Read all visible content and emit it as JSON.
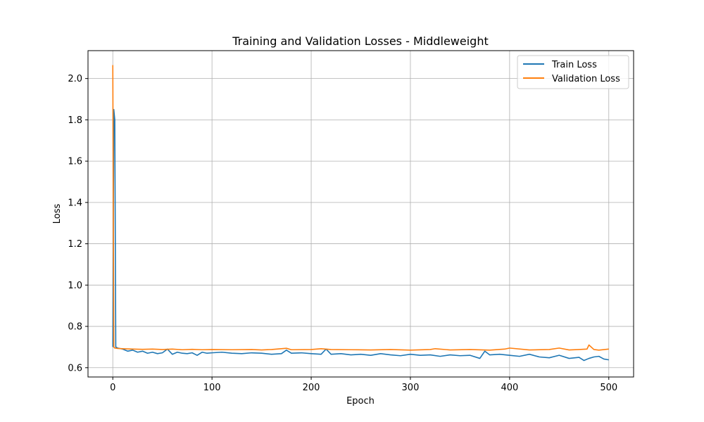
{
  "chart_data": {
    "type": "line",
    "title": "Training and Validation Losses - Middleweight",
    "xlabel": "Epoch",
    "ylabel": "Loss",
    "xlim": [
      -25,
      525
    ],
    "ylim": [
      0.555,
      2.135
    ],
    "xticks": [
      0,
      100,
      200,
      300,
      400,
      500
    ],
    "yticks": [
      0.6,
      0.8,
      1.0,
      1.2,
      1.4,
      1.6,
      1.8,
      2.0
    ],
    "xtick_labels": [
      "0",
      "100",
      "200",
      "300",
      "400",
      "500"
    ],
    "ytick_labels": [
      "0.6",
      "0.8",
      "1.0",
      "1.2",
      "1.4",
      "1.6",
      "1.8",
      "2.0"
    ],
    "grid": true,
    "legend_position": "top-right",
    "series": [
      {
        "name": "Train Loss",
        "color": "#1f77b4",
        "x": [
          0,
          1,
          2,
          3,
          5,
          10,
          15,
          20,
          25,
          30,
          35,
          40,
          45,
          50,
          55,
          60,
          65,
          70,
          75,
          80,
          85,
          90,
          95,
          100,
          110,
          120,
          130,
          140,
          150,
          160,
          170,
          175,
          180,
          190,
          200,
          210,
          215,
          220,
          230,
          240,
          250,
          260,
          270,
          280,
          290,
          300,
          310,
          320,
          330,
          340,
          350,
          360,
          370,
          375,
          380,
          390,
          400,
          410,
          420,
          430,
          440,
          450,
          460,
          470,
          475,
          480,
          485,
          490,
          495,
          500
        ],
        "y": [
          0.7,
          1.85,
          1.8,
          0.7,
          0.695,
          0.69,
          0.68,
          0.685,
          0.675,
          0.68,
          0.67,
          0.675,
          0.668,
          0.672,
          0.69,
          0.665,
          0.675,
          0.67,
          0.668,
          0.672,
          0.66,
          0.675,
          0.67,
          0.672,
          0.675,
          0.67,
          0.668,
          0.672,
          0.67,
          0.665,
          0.668,
          0.685,
          0.67,
          0.672,
          0.668,
          0.665,
          0.69,
          0.665,
          0.668,
          0.662,
          0.665,
          0.66,
          0.668,
          0.662,
          0.658,
          0.665,
          0.66,
          0.662,
          0.655,
          0.662,
          0.658,
          0.66,
          0.645,
          0.68,
          0.662,
          0.665,
          0.66,
          0.655,
          0.665,
          0.652,
          0.648,
          0.66,
          0.645,
          0.65,
          0.635,
          0.645,
          0.652,
          0.655,
          0.642,
          0.638
        ]
      },
      {
        "name": "Validation Loss",
        "color": "#ff7f0e",
        "x": [
          0,
          1,
          2,
          5,
          10,
          20,
          30,
          40,
          50,
          60,
          70,
          80,
          90,
          100,
          120,
          140,
          150,
          160,
          175,
          180,
          200,
          210,
          220,
          240,
          260,
          280,
          300,
          320,
          325,
          340,
          360,
          380,
          395,
          400,
          420,
          440,
          450,
          460,
          470,
          478,
          480,
          485,
          490,
          500
        ],
        "y": [
          2.065,
          0.7,
          0.695,
          0.693,
          0.692,
          0.69,
          0.689,
          0.69,
          0.688,
          0.69,
          0.687,
          0.689,
          0.687,
          0.688,
          0.687,
          0.688,
          0.686,
          0.688,
          0.694,
          0.687,
          0.688,
          0.692,
          0.688,
          0.687,
          0.686,
          0.688,
          0.685,
          0.688,
          0.692,
          0.686,
          0.688,
          0.685,
          0.69,
          0.695,
          0.686,
          0.688,
          0.695,
          0.686,
          0.688,
          0.69,
          0.71,
          0.688,
          0.685,
          0.69
        ]
      }
    ]
  }
}
